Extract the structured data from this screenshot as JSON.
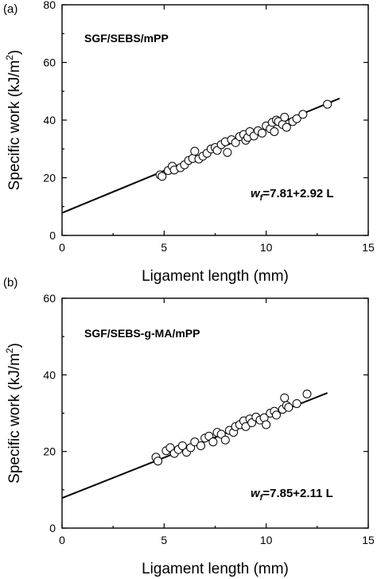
{
  "chart_data": [
    {
      "type": "scatter",
      "panel_label": "(a)",
      "title": "SGF/SEBS/mPP",
      "xlabel": "Ligament length (mm)",
      "ylabel": "Specific work (kJ/m²)",
      "ylabel_main": "Specific work (kJ/m",
      "ylabel_sup": "2",
      "ylabel_end": ")",
      "xlim": [
        0,
        15
      ],
      "ylim": [
        0,
        80
      ],
      "xticks": [
        "0",
        "5",
        "10",
        "15"
      ],
      "yticks": [
        "0",
        "20",
        "40",
        "60",
        "80"
      ],
      "equation_italic": "w",
      "equation_sub": "f",
      "equation_rest": "=7.81+2.92 L",
      "fit": {
        "intercept": 7.81,
        "slope": 2.92,
        "x_range": [
          0,
          13.6
        ]
      },
      "points": [
        [
          4.8,
          21.0
        ],
        [
          4.9,
          20.5
        ],
        [
          5.2,
          22.5
        ],
        [
          5.4,
          24.0
        ],
        [
          5.5,
          22.7
        ],
        [
          5.8,
          23.5
        ],
        [
          6.0,
          24.5
        ],
        [
          6.2,
          26.0
        ],
        [
          6.4,
          26.7
        ],
        [
          6.5,
          29.2
        ],
        [
          6.7,
          26.5
        ],
        [
          6.9,
          27.5
        ],
        [
          7.1,
          28.5
        ],
        [
          7.3,
          30.0
        ],
        [
          7.5,
          30.5
        ],
        [
          7.6,
          29.5
        ],
        [
          7.8,
          31.5
        ],
        [
          8.0,
          32.5
        ],
        [
          8.1,
          28.8
        ],
        [
          8.3,
          33.2
        ],
        [
          8.5,
          32.2
        ],
        [
          8.7,
          34.3
        ],
        [
          8.9,
          35.0
        ],
        [
          9.0,
          33.0
        ],
        [
          9.1,
          34.0
        ],
        [
          9.2,
          36.0
        ],
        [
          9.4,
          34.5
        ],
        [
          9.6,
          36.3
        ],
        [
          9.8,
          35.5
        ],
        [
          10.0,
          38.0
        ],
        [
          10.2,
          37.0
        ],
        [
          10.3,
          39.2
        ],
        [
          10.4,
          36.0
        ],
        [
          10.5,
          40.0
        ],
        [
          10.6,
          39.5
        ],
        [
          10.8,
          38.5
        ],
        [
          10.9,
          41.0
        ],
        [
          11.0,
          37.5
        ],
        [
          11.3,
          39.5
        ],
        [
          11.5,
          40.5
        ],
        [
          11.8,
          42.0
        ],
        [
          13.0,
          45.5
        ]
      ]
    },
    {
      "type": "scatter",
      "panel_label": "(b)",
      "title": "SGF/SEBS-g-MA/mPP",
      "xlabel": "Ligament length (mm)",
      "ylabel": "Specific work (kJ/m²)",
      "ylabel_main": "Specific work (kJ/m",
      "ylabel_sup": "2",
      "ylabel_end": ")",
      "xlim": [
        0,
        15
      ],
      "ylim": [
        0,
        60
      ],
      "xticks": [
        "0",
        "5",
        "10",
        "15"
      ],
      "yticks": [
        "0",
        "20",
        "40",
        "60"
      ],
      "equation_italic": "w",
      "equation_sub": "f",
      "equation_rest": "=7.85+2.11 L",
      "fit": {
        "intercept": 7.85,
        "slope": 2.11,
        "x_range": [
          0,
          13.0
        ]
      },
      "points": [
        [
          4.6,
          18.5
        ],
        [
          4.7,
          17.5
        ],
        [
          5.1,
          20.2
        ],
        [
          5.3,
          21.0
        ],
        [
          5.5,
          19.5
        ],
        [
          5.7,
          20.5
        ],
        [
          5.9,
          21.5
        ],
        [
          6.1,
          19.8
        ],
        [
          6.3,
          21.0
        ],
        [
          6.5,
          22.5
        ],
        [
          6.8,
          21.5
        ],
        [
          7.0,
          23.5
        ],
        [
          7.2,
          24.0
        ],
        [
          7.4,
          22.5
        ],
        [
          7.6,
          25.0
        ],
        [
          7.8,
          24.5
        ],
        [
          8.0,
          23.0
        ],
        [
          8.2,
          25.5
        ],
        [
          8.4,
          25.0
        ],
        [
          8.5,
          26.5
        ],
        [
          8.7,
          27.0
        ],
        [
          8.9,
          28.0
        ],
        [
          9.0,
          26.5
        ],
        [
          9.2,
          28.5
        ],
        [
          9.3,
          27.5
        ],
        [
          9.5,
          29.0
        ],
        [
          9.7,
          28.2
        ],
        [
          9.9,
          28.8
        ],
        [
          10.0,
          27.0
        ],
        [
          10.2,
          30.0
        ],
        [
          10.4,
          30.5
        ],
        [
          10.5,
          29.5
        ],
        [
          10.8,
          31.0
        ],
        [
          10.9,
          34.0
        ],
        [
          11.0,
          32.0
        ],
        [
          11.1,
          31.5
        ],
        [
          11.5,
          32.5
        ],
        [
          12.0,
          35.0
        ]
      ]
    }
  ]
}
